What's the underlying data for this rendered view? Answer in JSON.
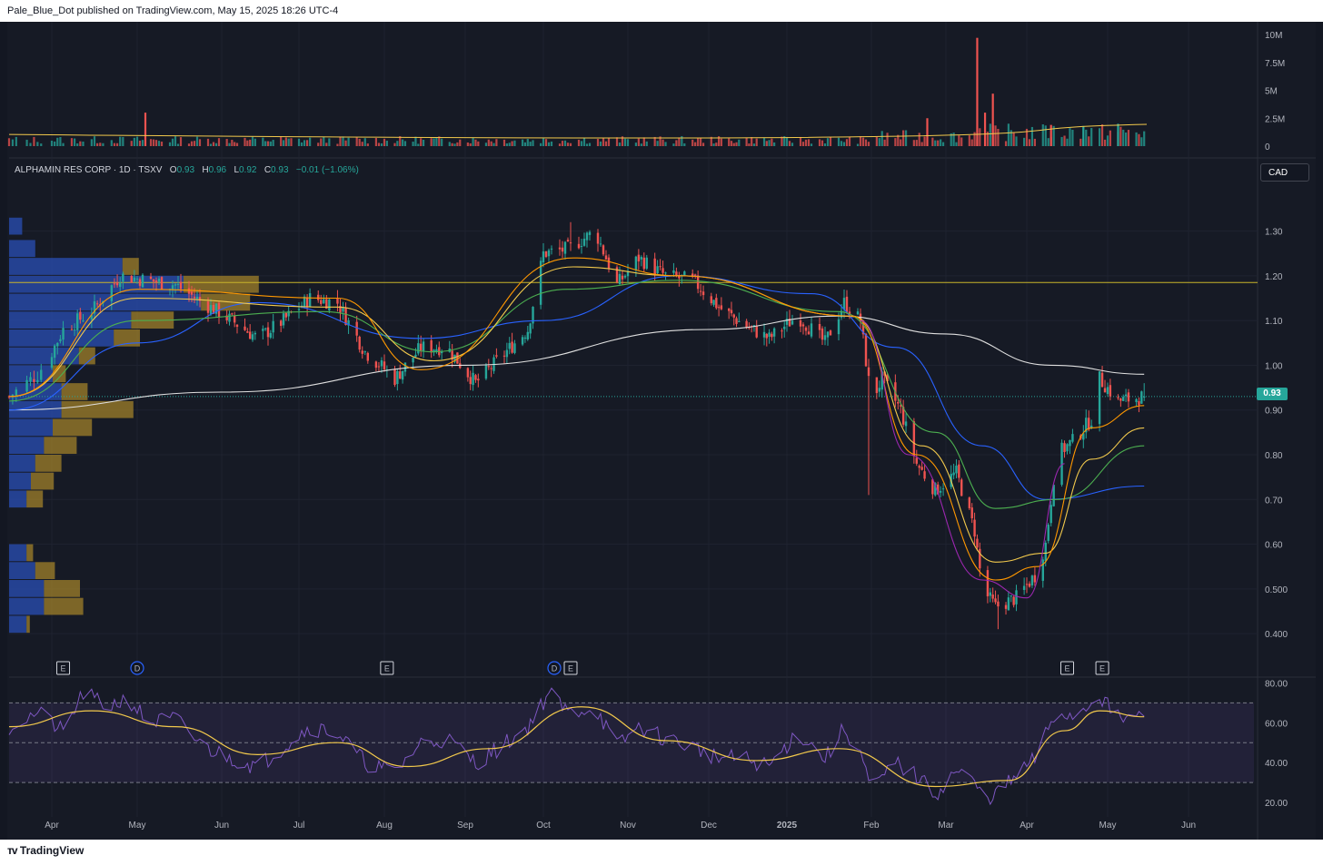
{
  "header": {
    "text": "Pale_Blue_Dot published on TradingView.com, May 15, 2025 18:26 UTC-4"
  },
  "footer": {
    "logo_text": "TradingView",
    "logo_icon": "tradingview-logo-icon"
  },
  "legend": {
    "symbol": "ALPHAMIN RES CORP · 1D · TSXV",
    "open_label": "O",
    "open": "0.93",
    "high_label": "H",
    "high": "0.96",
    "low_label": "L",
    "low": "0.92",
    "close_label": "C",
    "close": "0.93",
    "change": "−0.01 (−1.06%)"
  },
  "currency": "CAD",
  "last_price_label": "0.93",
  "colors": {
    "background": "#161a25",
    "up": "#26a69a",
    "down": "#ef5350",
    "ema_purple": "#9c27b0",
    "ema_orange": "#ff9800",
    "ema_yellow": "#f2c94c",
    "ema_green": "#4caf50",
    "ema_blue": "#2962ff",
    "sma_white": "#e0e0e0",
    "rsi": "#7e57c2",
    "rsi_ma": "#f2c94c",
    "vp_blue": "#2a4fb6",
    "vp_gold": "#a9872a",
    "resistance": "#c9b42b"
  },
  "events": [
    {
      "type": "E",
      "month": "Apr",
      "offset": 0.8
    },
    {
      "type": "D",
      "month": "May",
      "offset": 0.5
    },
    {
      "type": "E",
      "month": "Aug",
      "offset": 0.6
    },
    {
      "type": "D",
      "month": "Oct",
      "offset": 0.8
    },
    {
      "type": "E",
      "month": "Oct",
      "offset": 1.2
    },
    {
      "type": "E",
      "month": "Apr",
      "offset": 1.5
    },
    {
      "type": "E",
      "month": "May",
      "offset": 0.4
    }
  ],
  "chart_data": [
    {
      "type": "bar",
      "name": "Volume",
      "ylim": [
        0,
        10000000
      ],
      "ytick_labels": [
        "10M",
        "7.5M",
        "5M",
        "2.5M",
        "0"
      ],
      "ytick_values": [
        10000000,
        7500000,
        5000000,
        2500000,
        0
      ],
      "notable_values": [
        {
          "month": "May",
          "offset": 0.1,
          "value": 3000000,
          "direction": "down"
        },
        {
          "month": "Jan",
          "offset": 1.75,
          "value": 2500000,
          "direction": "down"
        },
        {
          "month": "Feb",
          "offset": 1.55,
          "value": 4700000,
          "direction": "down"
        },
        {
          "month": "Mar",
          "offset": 0.4,
          "value": 9700000,
          "direction": "down"
        },
        {
          "month": "Mar",
          "offset": 0.5,
          "value": 3000000,
          "direction": "down"
        },
        {
          "month": "Apr",
          "offset": 0.3,
          "value": 1900000,
          "direction": "down"
        },
        {
          "month": "Apr",
          "offset": 0.7,
          "value": 1800000,
          "direction": "up"
        },
        {
          "month": "May",
          "offset": 0.15,
          "value": 2000000,
          "direction": "up"
        }
      ],
      "ma_level": 1500000
    },
    {
      "type": "candlestick",
      "name": "ALPHAMIN RES CORP",
      "ylim": [
        0.38,
        1.36
      ],
      "ytick_labels": [
        "1.30",
        "1.20",
        "1.10",
        "1.00",
        "0.90",
        "0.80",
        "0.70",
        "0.60",
        "0.500",
        "0.400"
      ],
      "ytick_values": [
        1.3,
        1.2,
        1.1,
        1.0,
        0.9,
        0.8,
        0.7,
        0.6,
        0.5,
        0.4
      ],
      "x_labels": [
        "Apr",
        "May",
        "Jun",
        "Jul",
        "Aug",
        "Sep",
        "Oct",
        "Nov",
        "Dec",
        "2025",
        "Feb",
        "Mar",
        "Apr",
        "May",
        "Jun"
      ],
      "close_path": [
        {
          "d": "2024-03-20",
          "c": 0.93
        },
        {
          "d": "2024-03-28",
          "c": 0.98
        },
        {
          "d": "2024-04-05",
          "c": 1.08
        },
        {
          "d": "2024-04-15",
          "c": 1.12
        },
        {
          "d": "2024-04-25",
          "c": 1.2
        },
        {
          "d": "2024-05-05",
          "c": 1.19
        },
        {
          "d": "2024-05-15",
          "c": 1.18
        },
        {
          "d": "2024-05-25",
          "c": 1.14
        },
        {
          "d": "2024-06-05",
          "c": 1.1
        },
        {
          "d": "2024-06-15",
          "c": 1.06
        },
        {
          "d": "2024-06-25",
          "c": 1.1
        },
        {
          "d": "2024-07-05",
          "c": 1.15
        },
        {
          "d": "2024-07-15",
          "c": 1.14
        },
        {
          "d": "2024-07-25",
          "c": 1.03
        },
        {
          "d": "2024-08-05",
          "c": 0.97
        },
        {
          "d": "2024-08-15",
          "c": 1.04
        },
        {
          "d": "2024-08-25",
          "c": 1.04
        },
        {
          "d": "2024-09-05",
          "c": 0.96
        },
        {
          "d": "2024-09-15",
          "c": 1.02
        },
        {
          "d": "2024-09-25",
          "c": 1.08
        },
        {
          "d": "2024-10-01",
          "c": 1.25
        },
        {
          "d": "2024-10-10",
          "c": 1.26
        },
        {
          "d": "2024-10-20",
          "c": 1.3
        },
        {
          "d": "2024-10-28",
          "c": 1.18
        },
        {
          "d": "2024-11-05",
          "c": 1.24
        },
        {
          "d": "2024-11-15",
          "c": 1.2
        },
        {
          "d": "2024-11-25",
          "c": 1.19
        },
        {
          "d": "2024-12-05",
          "c": 1.13
        },
        {
          "d": "2024-12-15",
          "c": 1.09
        },
        {
          "d": "2024-12-25",
          "c": 1.06
        },
        {
          "d": "2025-01-05",
          "c": 1.11
        },
        {
          "d": "2025-01-15",
          "c": 1.05
        },
        {
          "d": "2025-01-22",
          "c": 1.14
        },
        {
          "d": "2025-01-28",
          "c": 1.1
        },
        {
          "d": "2025-02-01",
          "c": 0.92
        },
        {
          "d": "2025-02-05",
          "c": 0.97
        },
        {
          "d": "2025-02-12",
          "c": 0.9
        },
        {
          "d": "2025-02-18",
          "c": 0.78
        },
        {
          "d": "2025-02-25",
          "c": 0.72
        },
        {
          "d": "2025-03-05",
          "c": 0.76
        },
        {
          "d": "2025-03-12",
          "c": 0.63
        },
        {
          "d": "2025-03-15",
          "c": 0.5
        },
        {
          "d": "2025-03-20",
          "c": 0.46
        },
        {
          "d": "2025-03-28",
          "c": 0.48
        },
        {
          "d": "2025-04-04",
          "c": 0.53
        },
        {
          "d": "2025-04-08",
          "c": 0.6
        },
        {
          "d": "2025-04-12",
          "c": 0.8
        },
        {
          "d": "2025-04-18",
          "c": 0.83
        },
        {
          "d": "2025-04-25",
          "c": 0.88
        },
        {
          "d": "2025-04-28",
          "c": 0.97
        },
        {
          "d": "2025-05-05",
          "c": 0.92
        },
        {
          "d": "2025-05-15",
          "c": 0.93
        }
      ],
      "wick_extremes": [
        {
          "d": "2025-02-01",
          "low": 0.71
        },
        {
          "d": "2025-03-22",
          "low": 0.41
        },
        {
          "d": "2024-10-12",
          "high": 1.32
        }
      ],
      "horizontal_line": 1.185,
      "last_price": 0.93,
      "moving_averages": [
        {
          "color_key": "sma_white",
          "points": [
            [
              "2024-03-20",
              0.9
            ],
            [
              "2024-06-01",
              0.94
            ],
            [
              "2024-09-01",
              1.0
            ],
            [
              "2024-12-01",
              1.08
            ],
            [
              "2025-01-20",
              1.11
            ],
            [
              "2025-03-01",
              1.07
            ],
            [
              "2025-04-10",
              1.0
            ],
            [
              "2025-05-15",
              0.98
            ]
          ]
        },
        {
          "color_key": "ema_blue",
          "points": [
            [
              "2024-03-20",
              0.9
            ],
            [
              "2024-05-01",
              1.05
            ],
            [
              "2024-06-15",
              1.14
            ],
            [
              "2024-08-15",
              1.06
            ],
            [
              "2024-10-01",
              1.1
            ],
            [
              "2024-11-20",
              1.2
            ],
            [
              "2025-01-10",
              1.16
            ],
            [
              "2025-02-10",
              1.04
            ],
            [
              "2025-03-15",
              0.82
            ],
            [
              "2025-04-08",
              0.7
            ],
            [
              "2025-05-15",
              0.73
            ]
          ]
        },
        {
          "color_key": "ema_green",
          "points": [
            [
              "2024-03-20",
              0.92
            ],
            [
              "2024-05-01",
              1.1
            ],
            [
              "2024-07-10",
              1.12
            ],
            [
              "2024-08-20",
              1.03
            ],
            [
              "2024-10-10",
              1.17
            ],
            [
              "2024-11-20",
              1.19
            ],
            [
              "2025-01-20",
              1.12
            ],
            [
              "2025-02-25",
              0.85
            ],
            [
              "2025-03-20",
              0.68
            ],
            [
              "2025-04-12",
              0.7
            ],
            [
              "2025-05-15",
              0.82
            ]
          ]
        },
        {
          "color_key": "ema_yellow",
          "points": [
            [
              "2024-03-20",
              0.93
            ],
            [
              "2024-05-01",
              1.15
            ],
            [
              "2024-07-15",
              1.13
            ],
            [
              "2024-08-20",
              1.01
            ],
            [
              "2024-10-12",
              1.22
            ],
            [
              "2024-11-20",
              1.2
            ],
            [
              "2025-01-25",
              1.11
            ],
            [
              "2025-02-20",
              0.82
            ],
            [
              "2025-03-20",
              0.56
            ],
            [
              "2025-04-08",
              0.58
            ],
            [
              "2025-04-25",
              0.79
            ],
            [
              "2025-05-15",
              0.86
            ]
          ]
        },
        {
          "color_key": "ema_orange",
          "points": [
            [
              "2024-03-20",
              0.93
            ],
            [
              "2024-05-01",
              1.17
            ],
            [
              "2024-07-15",
              1.15
            ],
            [
              "2024-08-15",
              0.99
            ],
            [
              "2024-10-12",
              1.24
            ],
            [
              "2024-11-20",
              1.2
            ],
            [
              "2025-01-25",
              1.11
            ],
            [
              "2025-02-18",
              0.8
            ],
            [
              "2025-03-20",
              0.52
            ],
            [
              "2025-04-05",
              0.55
            ],
            [
              "2025-04-25",
              0.86
            ],
            [
              "2025-05-15",
              0.91
            ]
          ]
        },
        {
          "color_key": "ema_purple",
          "points": [
            [
              "2025-01-28",
              1.1
            ],
            [
              "2025-02-15",
              0.8
            ],
            [
              "2025-03-15",
              0.52
            ],
            [
              "2025-04-01",
              0.48
            ],
            [
              "2025-04-15",
              0.78
            ]
          ]
        }
      ],
      "volume_profile": {
        "ylim": [
          0.38,
          1.36
        ],
        "bins": [
          {
            "price": 1.33,
            "blue": 0.015,
            "gold": 0.0
          },
          {
            "price": 1.28,
            "blue": 0.03,
            "gold": 0.0
          },
          {
            "price": 1.24,
            "blue": 0.13,
            "gold": 0.05
          },
          {
            "price": 1.2,
            "blue": 0.2,
            "gold": 0.23
          },
          {
            "price": 1.16,
            "blue": 0.22,
            "gold": 0.15
          },
          {
            "price": 1.12,
            "blue": 0.14,
            "gold": 0.13
          },
          {
            "price": 1.08,
            "blue": 0.12,
            "gold": 0.08
          },
          {
            "price": 1.04,
            "blue": 0.08,
            "gold": 0.05
          },
          {
            "price": 1.0,
            "blue": 0.05,
            "gold": 0.04
          },
          {
            "price": 0.96,
            "blue": 0.06,
            "gold": 0.08
          },
          {
            "price": 0.92,
            "blue": 0.06,
            "gold": 0.22
          },
          {
            "price": 0.88,
            "blue": 0.05,
            "gold": 0.12
          },
          {
            "price": 0.84,
            "blue": 0.04,
            "gold": 0.1
          },
          {
            "price": 0.8,
            "blue": 0.03,
            "gold": 0.08
          },
          {
            "price": 0.76,
            "blue": 0.025,
            "gold": 0.07
          },
          {
            "price": 0.72,
            "blue": 0.02,
            "gold": 0.05
          },
          {
            "price": 0.68,
            "blue": 0.0,
            "gold": 0.0
          },
          {
            "price": 0.64,
            "blue": 0.0,
            "gold": 0.0
          },
          {
            "price": 0.6,
            "blue": 0.02,
            "gold": 0.02
          },
          {
            "price": 0.56,
            "blue": 0.03,
            "gold": 0.06
          },
          {
            "price": 0.52,
            "blue": 0.04,
            "gold": 0.11
          },
          {
            "price": 0.48,
            "blue": 0.04,
            "gold": 0.12
          },
          {
            "price": 0.44,
            "blue": 0.02,
            "gold": 0.01
          }
        ]
      }
    },
    {
      "type": "line",
      "name": "RSI",
      "ylim": [
        15,
        82
      ],
      "ytick_labels": [
        "80.00",
        "60.00",
        "40.00",
        "20.00"
      ],
      "ytick_values": [
        80,
        60,
        40,
        20
      ],
      "bands": [
        70,
        50,
        30
      ],
      "rsi": [
        [
          "2024-03-20",
          58
        ],
        [
          "2024-03-28",
          65
        ],
        [
          "2024-04-05",
          55
        ],
        [
          "2024-04-12",
          75
        ],
        [
          "2024-04-20",
          68
        ],
        [
          "2024-04-28",
          72
        ],
        [
          "2024-05-05",
          60
        ],
        [
          "2024-05-15",
          62
        ],
        [
          "2024-05-25",
          48
        ],
        [
          "2024-06-05",
          42
        ],
        [
          "2024-06-15",
          38
        ],
        [
          "2024-06-25",
          48
        ],
        [
          "2024-07-05",
          58
        ],
        [
          "2024-07-15",
          55
        ],
        [
          "2024-07-25",
          40
        ],
        [
          "2024-08-05",
          35
        ],
        [
          "2024-08-15",
          50
        ],
        [
          "2024-08-25",
          52
        ],
        [
          "2024-09-05",
          40
        ],
        [
          "2024-09-15",
          48
        ],
        [
          "2024-09-25",
          58
        ],
        [
          "2024-10-03",
          75
        ],
        [
          "2024-10-10",
          65
        ],
        [
          "2024-10-20",
          68
        ],
        [
          "2024-10-28",
          48
        ],
        [
          "2024-11-05",
          58
        ],
        [
          "2024-11-15",
          52
        ],
        [
          "2024-11-25",
          48
        ],
        [
          "2024-12-05",
          42
        ],
        [
          "2024-12-15",
          42
        ],
        [
          "2024-12-25",
          38
        ],
        [
          "2025-01-05",
          55
        ],
        [
          "2025-01-15",
          42
        ],
        [
          "2025-01-22",
          57
        ],
        [
          "2025-01-28",
          45
        ],
        [
          "2025-02-01",
          25
        ],
        [
          "2025-02-10",
          40
        ],
        [
          "2025-02-18",
          33
        ],
        [
          "2025-02-25",
          24
        ],
        [
          "2025-03-05",
          36
        ],
        [
          "2025-03-12",
          30
        ],
        [
          "2025-03-15",
          22
        ],
        [
          "2025-03-20",
          24
        ],
        [
          "2025-03-28",
          33
        ],
        [
          "2025-04-04",
          42
        ],
        [
          "2025-04-12",
          66
        ],
        [
          "2025-04-18",
          63
        ],
        [
          "2025-04-28",
          74
        ],
        [
          "2025-05-05",
          62
        ],
        [
          "2025-05-15",
          63
        ]
      ],
      "rsi_ma": [
        [
          "2024-03-20",
          58
        ],
        [
          "2024-04-15",
          66
        ],
        [
          "2024-05-15",
          58
        ],
        [
          "2024-06-15",
          44
        ],
        [
          "2024-07-15",
          50
        ],
        [
          "2024-08-10",
          38
        ],
        [
          "2024-09-10",
          47
        ],
        [
          "2024-10-15",
          68
        ],
        [
          "2024-11-15",
          51
        ],
        [
          "2024-12-20",
          41
        ],
        [
          "2025-01-20",
          47
        ],
        [
          "2025-02-25",
          28
        ],
        [
          "2025-03-25",
          31
        ],
        [
          "2025-04-15",
          56
        ],
        [
          "2025-04-28",
          66
        ],
        [
          "2025-05-15",
          63
        ]
      ]
    }
  ]
}
